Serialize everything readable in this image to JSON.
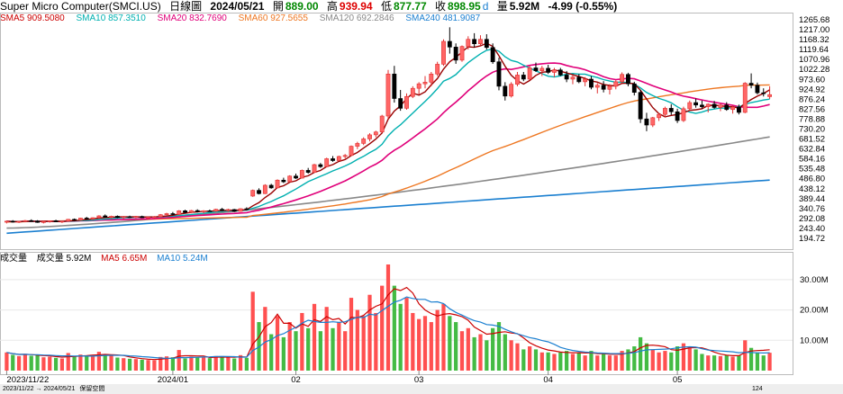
{
  "header": {
    "name": "Super Micro Computer(SMCI.US)",
    "period": "日線圖",
    "date": "2024/05/21",
    "open_label": "開",
    "open": "889.00",
    "high_label": "高",
    "high": "939.94",
    "low_label": "低",
    "low": "877.77",
    "close_label": "收",
    "close": "898.95",
    "unit_d": "d",
    "vol_label": "量",
    "vol": "5.92M",
    "change": "-4.99 (-0.55%)"
  },
  "ma_legend": [
    {
      "label": "SMA5 909.5080",
      "color": "#cc0000"
    },
    {
      "label": "SMA10 857.3510",
      "color": "#00b0b0"
    },
    {
      "label": "SMA20 832.7690",
      "color": "#e0007a"
    },
    {
      "label": "SMA60 927.5655",
      "color": "#ee7722"
    },
    {
      "label": "SMA120 692.2846",
      "color": "#888888"
    },
    {
      "label": "SMA240 481.9087",
      "color": "#1a7fd0"
    }
  ],
  "vol_legend": [
    {
      "label": "成交量",
      "color": "#000000"
    },
    {
      "label": "成交量 5.92M",
      "color": "#000000"
    },
    {
      "label": "MA5 6.65M",
      "color": "#cc0000"
    },
    {
      "label": "MA10 5.24M",
      "color": "#1a7fd0"
    }
  ],
  "bottom_bar": {
    "range": "2023/11/22 → 2024/05/21",
    "view": "保留空間",
    "count": "124"
  },
  "colors": {
    "up": "#ff6666",
    "up_border": "#e03030",
    "down": "#000000",
    "vol_up": "#ff5050",
    "vol_down": "#44bb44"
  },
  "chart_data": {
    "type": "candlestick",
    "price_axis": {
      "min": 194.72,
      "max": 1265.68,
      "ticks": [
        "1265.68",
        "1217.00",
        "1168.32",
        "1119.64",
        "1070.96",
        "1022.28",
        "973.60",
        "924.92",
        "876.24",
        "827.56",
        "778.88",
        "730.20",
        "681.52",
        "632.84",
        "584.16",
        "535.48",
        "486.80",
        "438.12",
        "389.44",
        "340.76",
        "292.08",
        "243.40",
        "194.72"
      ]
    },
    "volume_axis": {
      "min": 0,
      "max": 35000000,
      "ticks": [
        {
          "label": "30.00M",
          "value": 30000000
        },
        {
          "label": "20.00M",
          "value": 20000000
        },
        {
          "label": "10.00M",
          "value": 10000000
        }
      ]
    },
    "x_labels": [
      {
        "label": "2023/11/22",
        "index": 0
      },
      {
        "label": "2024/01",
        "index": 27
      },
      {
        "label": "02",
        "index": 47
      },
      {
        "label": "03",
        "index": 67
      },
      {
        "label": "04",
        "index": 88
      },
      {
        "label": "05",
        "index": 109
      }
    ],
    "candles": [
      [
        274,
        282,
        268,
        279,
        6.0
      ],
      [
        279,
        284,
        272,
        275,
        5.2
      ],
      [
        276,
        280,
        270,
        278,
        4.8
      ],
      [
        278,
        285,
        274,
        282,
        5.5
      ],
      [
        282,
        288,
        276,
        280,
        4.9
      ],
      [
        280,
        284,
        271,
        273,
        5.1
      ],
      [
        273,
        279,
        268,
        277,
        4.4
      ],
      [
        277,
        283,
        272,
        281,
        4.6
      ],
      [
        281,
        286,
        275,
        276,
        4.2
      ],
      [
        276,
        281,
        270,
        279,
        4.0
      ],
      [
        279,
        290,
        276,
        288,
        5.8
      ],
      [
        288,
        292,
        281,
        284,
        4.7
      ],
      [
        284,
        296,
        282,
        294,
        5.3
      ],
      [
        294,
        300,
        287,
        290,
        4.8
      ],
      [
        290,
        298,
        285,
        296,
        5.0
      ],
      [
        296,
        308,
        292,
        305,
        6.2
      ],
      [
        305,
        312,
        296,
        298,
        5.4
      ],
      [
        298,
        306,
        292,
        303,
        4.9
      ],
      [
        303,
        307,
        294,
        297,
        4.3
      ],
      [
        297,
        304,
        290,
        301,
        4.1
      ],
      [
        301,
        306,
        294,
        299,
        3.9
      ],
      [
        299,
        305,
        293,
        302,
        3.8
      ],
      [
        302,
        306,
        294,
        296,
        3.6
      ],
      [
        296,
        301,
        289,
        299,
        3.5
      ],
      [
        299,
        304,
        292,
        301,
        3.4
      ],
      [
        301,
        314,
        298,
        311,
        4.5
      ],
      [
        311,
        320,
        305,
        316,
        4.7
      ],
      [
        316,
        324,
        308,
        312,
        4.4
      ],
      [
        312,
        333,
        309,
        330,
        6.8
      ],
      [
        330,
        335,
        318,
        322,
        4.0
      ],
      [
        322,
        334,
        318,
        331,
        4.6
      ],
      [
        331,
        337,
        322,
        326,
        4.3
      ],
      [
        326,
        333,
        318,
        330,
        4.5
      ],
      [
        330,
        336,
        325,
        328,
        4.1
      ],
      [
        328,
        340,
        324,
        337,
        4.8
      ],
      [
        337,
        344,
        329,
        333,
        4.6
      ],
      [
        333,
        340,
        326,
        336,
        4.4
      ],
      [
        336,
        339,
        324,
        327,
        4.0
      ],
      [
        327,
        342,
        325,
        340,
        5.1
      ],
      [
        340,
        347,
        333,
        338,
        4.2
      ],
      [
        402,
        434,
        398,
        430,
        26.0
      ],
      [
        430,
        440,
        410,
        414,
        16.0
      ],
      [
        414,
        460,
        412,
        455,
        21.0
      ],
      [
        455,
        462,
        438,
        442,
        12.0
      ],
      [
        442,
        484,
        440,
        480,
        18.0
      ],
      [
        480,
        492,
        466,
        472,
        11.0
      ],
      [
        472,
        504,
        470,
        500,
        16.0
      ],
      [
        500,
        512,
        486,
        490,
        13.0
      ],
      [
        490,
        532,
        488,
        528,
        19.0
      ],
      [
        528,
        540,
        512,
        518,
        14.0
      ],
      [
        518,
        560,
        516,
        556,
        22.0
      ],
      [
        556,
        564,
        540,
        546,
        13.0
      ],
      [
        546,
        590,
        544,
        585,
        21.0
      ],
      [
        585,
        598,
        570,
        576,
        14.0
      ],
      [
        576,
        600,
        574,
        596,
        16.0
      ],
      [
        596,
        608,
        586,
        601,
        13.0
      ],
      [
        601,
        650,
        598,
        646,
        24.0
      ],
      [
        646,
        668,
        632,
        660,
        20.0
      ],
      [
        660,
        690,
        652,
        682,
        18.0
      ],
      [
        682,
        710,
        670,
        702,
        25.0
      ],
      [
        702,
        722,
        690,
        716,
        19.0
      ],
      [
        716,
        800,
        712,
        794,
        28.0
      ],
      [
        794,
        1020,
        780,
        1000,
        35.0
      ],
      [
        1000,
        1040,
        860,
        880,
        28.0
      ],
      [
        880,
        922,
        820,
        832,
        22.0
      ],
      [
        832,
        905,
        825,
        890,
        24.0
      ],
      [
        890,
        940,
        882,
        930,
        19.0
      ],
      [
        930,
        960,
        900,
        952,
        17.0
      ],
      [
        952,
        990,
        930,
        960,
        18.0
      ],
      [
        960,
        1010,
        940,
        1000,
        16.0
      ],
      [
        1000,
        1060,
        990,
        1048,
        20.0
      ],
      [
        1048,
        1170,
        1040,
        1160,
        22.0
      ],
      [
        1160,
        1229,
        1100,
        1132,
        18.0
      ],
      [
        1132,
        1150,
        1050,
        1068,
        16.0
      ],
      [
        1068,
        1140,
        1060,
        1135,
        13.0
      ],
      [
        1135,
        1185,
        1120,
        1170,
        14.0
      ],
      [
        1170,
        1200,
        1130,
        1148,
        11.0
      ],
      [
        1148,
        1190,
        1140,
        1170,
        12.0
      ],
      [
        1170,
        1195,
        1120,
        1130,
        10.0
      ],
      [
        1130,
        1150,
        1050,
        1060,
        14.0
      ],
      [
        1060,
        1080,
        920,
        940,
        16.0
      ],
      [
        940,
        960,
        870,
        892,
        12.0
      ],
      [
        892,
        960,
        885,
        950,
        10.0
      ],
      [
        950,
        1010,
        940,
        995,
        9.0
      ],
      [
        995,
        1010,
        965,
        975,
        7.0
      ],
      [
        975,
        1040,
        970,
        1030,
        8.0
      ],
      [
        1030,
        1056,
        1010,
        1016,
        7.0
      ],
      [
        1016,
        1040,
        990,
        1028,
        6.0
      ],
      [
        1028,
        1045,
        1000,
        1008,
        6.0
      ],
      [
        1008,
        1030,
        985,
        1020,
        5.5
      ],
      [
        1020,
        1030,
        990,
        995,
        6.0
      ],
      [
        995,
        1015,
        960,
        975,
        6.5
      ],
      [
        975,
        995,
        950,
        985,
        5.5
      ],
      [
        985,
        1000,
        955,
        962,
        6.0
      ],
      [
        962,
        985,
        940,
        975,
        5.0
      ],
      [
        975,
        990,
        925,
        935,
        6.5
      ],
      [
        935,
        955,
        905,
        945,
        5.0
      ],
      [
        945,
        965,
        910,
        925,
        5.5
      ],
      [
        925,
        950,
        900,
        940,
        5.0
      ],
      [
        940,
        970,
        925,
        962,
        5.0
      ],
      [
        962,
        1008,
        955,
        998,
        6.5
      ],
      [
        998,
        1006,
        940,
        952,
        7.0
      ],
      [
        952,
        962,
        895,
        910,
        8.0
      ],
      [
        910,
        922,
        760,
        780,
        11.0
      ],
      [
        780,
        810,
        720,
        750,
        9.0
      ],
      [
        750,
        790,
        740,
        786,
        7.0
      ],
      [
        786,
        810,
        770,
        802,
        6.0
      ],
      [
        802,
        840,
        790,
        832,
        6.5
      ],
      [
        832,
        852,
        800,
        815,
        6.0
      ],
      [
        815,
        830,
        760,
        772,
        8.0
      ],
      [
        772,
        840,
        765,
        830,
        9.0
      ],
      [
        830,
        870,
        820,
        860,
        8.0
      ],
      [
        860,
        880,
        835,
        848,
        7.0
      ],
      [
        848,
        870,
        830,
        840,
        5.5
      ],
      [
        840,
        856,
        812,
        852,
        5.0
      ],
      [
        852,
        868,
        830,
        836,
        5.0
      ],
      [
        836,
        855,
        818,
        848,
        4.8
      ],
      [
        848,
        862,
        820,
        826,
        5.2
      ],
      [
        826,
        845,
        806,
        838,
        4.6
      ],
      [
        838,
        850,
        802,
        812,
        5.0
      ],
      [
        812,
        960,
        808,
        955,
        10.0
      ],
      [
        955,
        1003,
        930,
        945,
        7.5
      ],
      [
        945,
        958,
        900,
        908,
        6.0
      ],
      [
        908,
        930,
        890,
        904,
        5.0
      ],
      [
        889,
        940,
        878,
        899,
        5.9
      ]
    ]
  }
}
